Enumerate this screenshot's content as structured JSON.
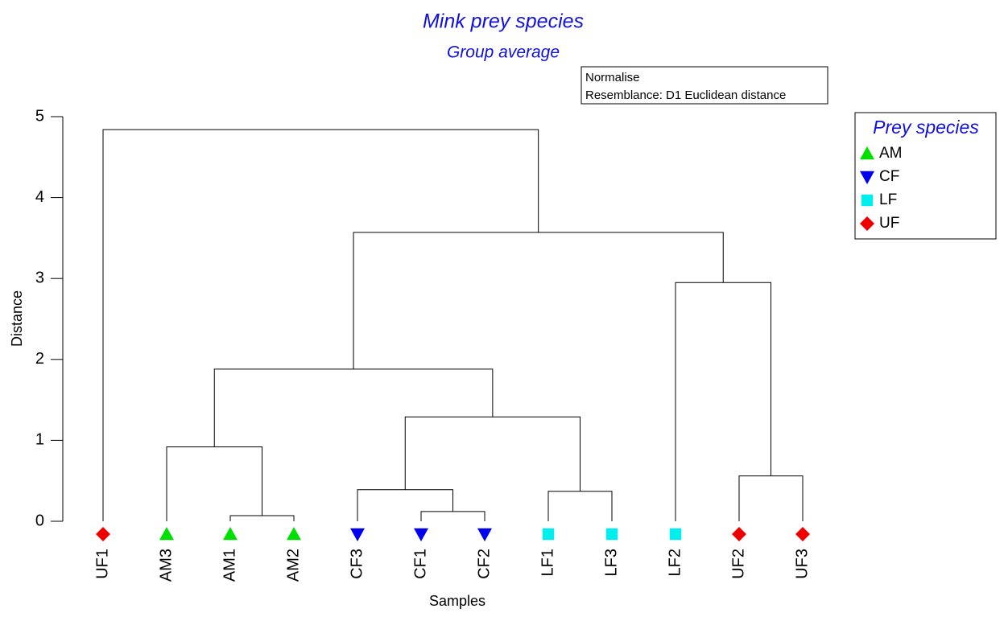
{
  "chart_data": {
    "type": "dendrogram",
    "title": "Mink prey species",
    "subtitle": "Group average",
    "annotations": [
      "Normalise",
      "Resemblance: D1 Euclidean distance"
    ],
    "y_label": "Distance",
    "x_label": "Samples",
    "ylim": [
      0,
      5
    ],
    "yticks": [
      0,
      1,
      2,
      3,
      4,
      5
    ],
    "legend_title": "Prey species",
    "legend_position": "right",
    "groups": [
      {
        "name": "AM",
        "color": "#00e000",
        "marker": "triangle-up"
      },
      {
        "name": "CF",
        "color": "#0000ee",
        "marker": "triangle-down"
      },
      {
        "name": "LF",
        "color": "#00eeee",
        "marker": "square"
      },
      {
        "name": "UF",
        "color": "#ee0000",
        "marker": "diamond"
      }
    ],
    "leaves": [
      {
        "label": "UF1",
        "group": "UF"
      },
      {
        "label": "AM3",
        "group": "AM"
      },
      {
        "label": "AM1",
        "group": "AM"
      },
      {
        "label": "AM2",
        "group": "AM"
      },
      {
        "label": "CF3",
        "group": "CF"
      },
      {
        "label": "CF1",
        "group": "CF"
      },
      {
        "label": "CF2",
        "group": "CF"
      },
      {
        "label": "LF1",
        "group": "LF"
      },
      {
        "label": "LF3",
        "group": "LF"
      },
      {
        "label": "LF2",
        "group": "LF"
      },
      {
        "label": "UF2",
        "group": "UF"
      },
      {
        "label": "UF3",
        "group": "UF"
      }
    ],
    "merges": [
      {
        "left": 2,
        "right": 3,
        "height": 0.07
      },
      {
        "left": 5,
        "right": 6,
        "height": 0.12
      },
      {
        "left": 7,
        "right": 8,
        "height": 0.37
      },
      {
        "left": 4,
        "right": 13,
        "height": 0.39
      },
      {
        "left": 10,
        "right": 11,
        "height": 0.56
      },
      {
        "left": 1,
        "right": 12,
        "height": 0.92
      },
      {
        "left": 15,
        "right": 14,
        "height": 1.29
      },
      {
        "left": 17,
        "right": 18,
        "height": 1.88
      },
      {
        "left": 9,
        "right": 16,
        "height": 2.95
      },
      {
        "left": 19,
        "right": 20,
        "height": 3.57
      },
      {
        "left": 0,
        "right": 21,
        "height": 4.84
      }
    ]
  }
}
